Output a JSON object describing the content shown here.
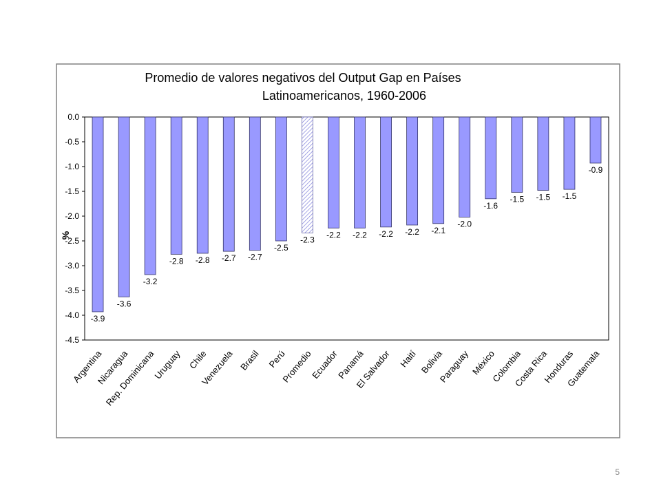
{
  "chart_data": {
    "type": "bar",
    "title": [
      "Promedio de valores negativos del Output Gap en Países",
      "Latinoamericanos, 1960-2006"
    ],
    "y_label": "%",
    "categories": [
      "Argentina",
      "Nicaragua",
      "Rep. Dominicana",
      "Uruguay",
      "Chile",
      "Venezuela",
      "Brasil",
      "Perú",
      "Promedio",
      "Ecuador",
      "Panamá",
      "El Salvador",
      "Haití",
      "Bolivia",
      "Paraguay",
      "México",
      "Colombia",
      "Costa Rica",
      "Honduras",
      "Guatemala"
    ],
    "values": [
      -3.93,
      -3.63,
      -3.18,
      -2.77,
      -2.75,
      -2.71,
      -2.69,
      -2.5,
      -2.34,
      -2.24,
      -2.24,
      -2.22,
      -2.18,
      -2.15,
      -2.02,
      -1.65,
      -1.52,
      -1.48,
      -1.46,
      -0.93
    ],
    "value_labels": [
      "-3.9",
      "-3.6",
      "-3.2",
      "-2.8",
      "-2.8",
      "-2.7",
      "-2.7",
      "-2.5",
      "-2.3",
      "-2.2",
      "-2.2",
      "-2.2",
      "-2.2",
      "-2.1",
      "-2.0",
      "-1.6",
      "-1.5",
      "-1.5",
      "-1.5",
      "-0.9"
    ],
    "color": "#9999ff",
    "hatched_category": "Promedio",
    "ylim": [
      -4.5,
      0
    ],
    "yticks": [
      {
        "value": 0,
        "label": "0.0"
      },
      -0.5,
      {
        "value": -1,
        "label": "-1.0"
      },
      -1.5,
      {
        "value": -2,
        "label": "-2.0"
      },
      -2.5,
      {
        "value": -3,
        "label": "-3.0"
      },
      -3.5,
      {
        "value": -4,
        "label": "-4.0"
      },
      -4.5
    ]
  },
  "page_number": "5"
}
